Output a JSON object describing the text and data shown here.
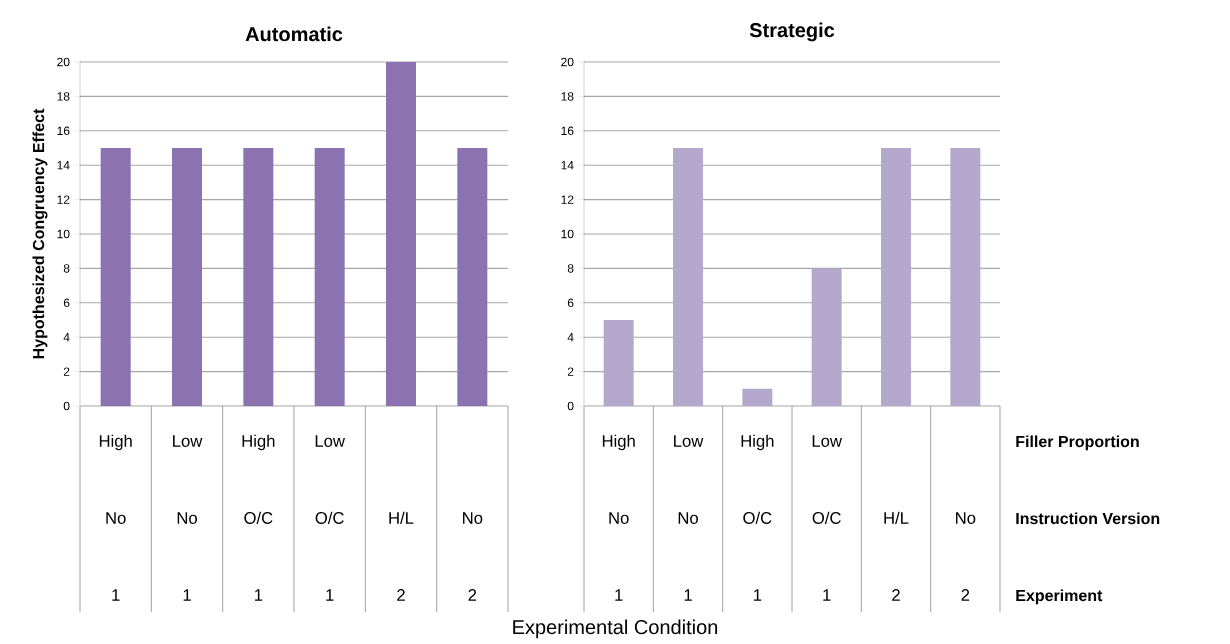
{
  "chart_data": [
    {
      "type": "bar",
      "title": "Automatic",
      "ylabel": "Hypothesized Congruency Effect",
      "xlabel": "Experimental Condition",
      "categories": [
        "High No 1",
        "Low No 1",
        "High O/C 1",
        "Low O/C 1",
        "H/L 2",
        "No 2"
      ],
      "values": [
        15,
        15,
        15,
        15,
        20,
        15
      ],
      "color": "#8c72b0",
      "ylim": [
        0,
        20
      ],
      "yticks": [
        0,
        2,
        4,
        6,
        8,
        10,
        12,
        14,
        16,
        18,
        20
      ],
      "grid": "y"
    },
    {
      "type": "bar",
      "title": "Strategic",
      "categories": [
        "High No 1",
        "Low No 1",
        "High O/C 1",
        "Low O/C 1",
        "H/L 2",
        "No 2"
      ],
      "values": [
        5,
        15,
        1,
        8,
        15,
        15
      ],
      "color": "#b4a8cc",
      "ylim": [
        0,
        20
      ],
      "yticks": [
        0,
        2,
        4,
        6,
        8,
        10,
        12,
        14,
        16,
        18,
        20
      ],
      "grid": "y",
      "annotations": [
        "Filler Proportion",
        "Instruction Version",
        "Experiment"
      ]
    }
  ]
}
